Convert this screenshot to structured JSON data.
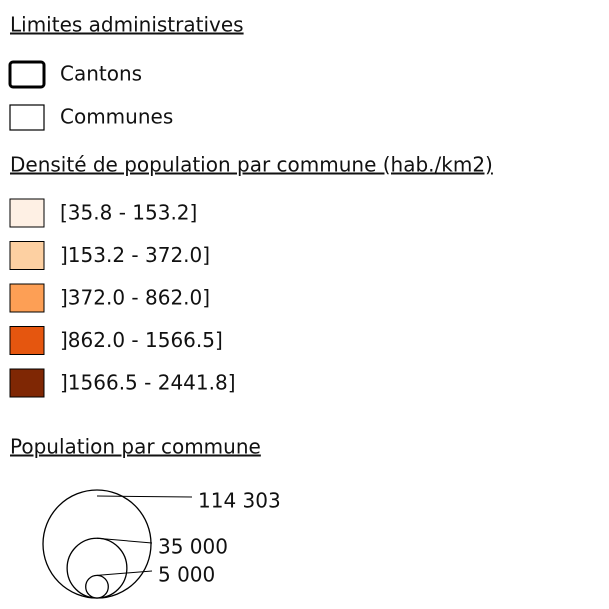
{
  "admin": {
    "title": "Limites administratives",
    "items": [
      "Cantons",
      "Communes"
    ]
  },
  "density": {
    "title": "Densité de population par commune (hab./km2)",
    "classes": [
      {
        "label": "[35.8 - 153.2]",
        "color": "#fef0e4"
      },
      {
        "label": "]153.2 - 372.0]",
        "color": "#fdd0a2"
      },
      {
        "label": "]372.0 - 862.0]",
        "color": "#fd9f55"
      },
      {
        "label": "]862.0 - 1566.5]",
        "color": "#e5560f"
      },
      {
        "label": "]1566.5 - 2441.8]",
        "color": "#7f2704"
      }
    ]
  },
  "population": {
    "title": "Population par commune",
    "sizes": [
      {
        "value": 114303,
        "label": "114 303"
      },
      {
        "value": 35000,
        "label": "35 000"
      },
      {
        "value": 5000,
        "label": "5 000"
      }
    ]
  }
}
